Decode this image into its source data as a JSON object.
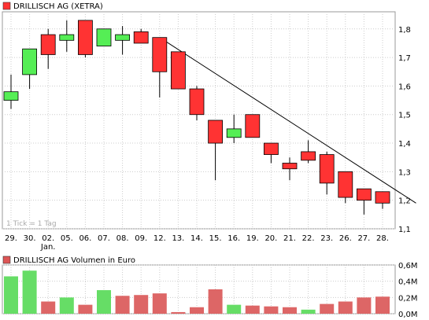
{
  "chart_data": [
    {
      "type": "candlestick",
      "legend": {
        "label": "DRILLISCH AG (XETRA)",
        "color": "#ff3333"
      },
      "note": "1 Tick = 1 Tag",
      "categories": [
        "29.",
        "30.",
        "02.",
        "05.",
        "06.",
        "07.",
        "08.",
        "09.",
        "12.",
        "13.",
        "14.",
        "15.",
        "16.",
        "19.",
        "20.",
        "21.",
        "22.",
        "23.",
        "26.",
        "27.",
        "28."
      ],
      "month_label": "Jan.",
      "month_label_index": 2,
      "y_ticks": [
        "1,1",
        "1,2",
        "1,3",
        "1,4",
        "1,5",
        "1,6",
        "1,7",
        "1,8"
      ],
      "ylim": [
        1.1,
        1.86
      ],
      "grid": true,
      "series": [
        {
          "open": 1.55,
          "close": 1.58,
          "high": 1.64,
          "low": 1.52
        },
        {
          "open": 1.64,
          "close": 1.73,
          "high": 1.73,
          "low": 1.59
        },
        {
          "open": 1.78,
          "close": 1.71,
          "high": 1.8,
          "low": 1.66
        },
        {
          "open": 1.76,
          "close": 1.78,
          "high": 1.83,
          "low": 1.72
        },
        {
          "open": 1.83,
          "close": 1.71,
          "high": 1.83,
          "low": 1.7
        },
        {
          "open": 1.74,
          "close": 1.8,
          "high": 1.8,
          "low": 1.74
        },
        {
          "open": 1.76,
          "close": 1.78,
          "high": 1.81,
          "low": 1.71
        },
        {
          "open": 1.79,
          "close": 1.75,
          "high": 1.8,
          "low": 1.75
        },
        {
          "open": 1.77,
          "close": 1.65,
          "high": 1.77,
          "low": 1.56
        },
        {
          "open": 1.72,
          "close": 1.59,
          "high": 1.72,
          "low": 1.59
        },
        {
          "open": 1.59,
          "close": 1.5,
          "high": 1.6,
          "low": 1.48
        },
        {
          "open": 1.48,
          "close": 1.4,
          "high": 1.48,
          "low": 1.27
        },
        {
          "open": 1.42,
          "close": 1.45,
          "high": 1.5,
          "low": 1.4
        },
        {
          "open": 1.5,
          "close": 1.42,
          "high": 1.5,
          "low": 1.42
        },
        {
          "open": 1.4,
          "close": 1.36,
          "high": 1.4,
          "low": 1.33
        },
        {
          "open": 1.33,
          "close": 1.31,
          "high": 1.35,
          "low": 1.27
        },
        {
          "open": 1.37,
          "close": 1.34,
          "high": 1.41,
          "low": 1.33
        },
        {
          "open": 1.36,
          "close": 1.26,
          "high": 1.37,
          "low": 1.22
        },
        {
          "open": 1.3,
          "close": 1.21,
          "high": 1.3,
          "low": 1.19
        },
        {
          "open": 1.24,
          "close": 1.2,
          "high": 1.24,
          "low": 1.15
        },
        {
          "open": 1.23,
          "close": 1.19,
          "high": 1.23,
          "low": 1.17
        }
      ],
      "trendline": {
        "from": {
          "index": 8,
          "value": 1.77
        },
        "to": {
          "index": 21.8,
          "value": 1.19
        }
      },
      "colors": {
        "up": "#55ee55",
        "down": "#ff3333",
        "grid": "#cccccc",
        "axis": "#000000"
      }
    },
    {
      "type": "bar",
      "legend": {
        "label": "DRILLISCH AG Volumen in Euro",
        "color": "#dd5555"
      },
      "y_ticks": [
        "0,0M",
        "0,2M",
        "0,4M",
        "0,6M"
      ],
      "ylim": [
        0,
        0.6
      ],
      "grid": true,
      "values": [
        0.46,
        0.53,
        0.15,
        0.2,
        0.11,
        0.29,
        0.22,
        0.23,
        0.25,
        0.02,
        0.08,
        0.3,
        0.11,
        0.1,
        0.09,
        0.08,
        0.05,
        0.12,
        0.15,
        0.2,
        0.21
      ],
      "direction": [
        "up",
        "up",
        "down",
        "up",
        "down",
        "up",
        "down",
        "down",
        "down",
        "down",
        "down",
        "down",
        "up",
        "down",
        "down",
        "down",
        "up",
        "down",
        "down",
        "down",
        "down"
      ],
      "colors": {
        "up": "#66dd66",
        "down": "#dd6666"
      }
    }
  ]
}
